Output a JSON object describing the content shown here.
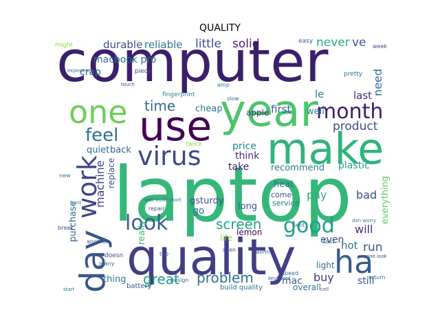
{
  "title": "QUALITY",
  "colors": {
    "background": "#ffffff",
    "title": "#000000"
  },
  "words": [
    {
      "text": "computer",
      "color": "#3b1f6b"
    },
    {
      "text": "laptop",
      "color": "#35b779"
    },
    {
      "text": "year",
      "color": "#4ec36b"
    },
    {
      "text": "quality",
      "color": "#433e85"
    },
    {
      "text": "make",
      "color": "#2fb47c"
    },
    {
      "text": "use",
      "color": "#440154"
    },
    {
      "text": "one",
      "color": "#6ece58"
    },
    {
      "text": "day",
      "color": "#39568c"
    },
    {
      "text": "work",
      "color": "#414487"
    },
    {
      "text": "ha",
      "color": "#365c8d"
    },
    {
      "text": "virus",
      "color": "#3e4a89"
    },
    {
      "text": "month",
      "color": "#3b1f6b"
    },
    {
      "text": "feel",
      "color": "#2d708e"
    },
    {
      "text": "look",
      "color": "#355f8d"
    },
    {
      "text": "good",
      "color": "#1f9e89"
    },
    {
      "text": "screen",
      "color": "#20a486"
    },
    {
      "text": "problem",
      "color": "#2c728e"
    },
    {
      "text": "great",
      "color": "#1e9b8a"
    },
    {
      "text": "time",
      "color": "#31688e"
    },
    {
      "text": "durable",
      "color": "#3e4a89"
    },
    {
      "text": "reliable",
      "color": "#2a788e"
    },
    {
      "text": "little",
      "color": "#3e4c8a"
    },
    {
      "text": "solid",
      "color": "#481a6c"
    },
    {
      "text": "never",
      "color": "#25ab82"
    },
    {
      "text": "ve",
      "color": "#3b528b"
    },
    {
      "text": "macbook pro",
      "color": "#2c718e"
    },
    {
      "text": "crap",
      "color": "#355f8d"
    },
    {
      "text": "product",
      "color": "#3e4a89"
    },
    {
      "text": "first",
      "color": "#365c8d"
    },
    {
      "text": "well",
      "color": "#2a788e"
    },
    {
      "text": "need",
      "color": "#31688e"
    },
    {
      "text": "last",
      "color": "#482677"
    },
    {
      "text": "le",
      "color": "#26818e"
    },
    {
      "text": "machine",
      "color": "#433e85"
    },
    {
      "text": "cheap",
      "color": "#2c728e"
    },
    {
      "text": "apple",
      "color": "#453781"
    },
    {
      "text": "price",
      "color": "#26828e"
    },
    {
      "text": "think",
      "color": "#472d7b"
    },
    {
      "text": "take",
      "color": "#3b1f6b"
    },
    {
      "text": "recommend",
      "color": "#2a788e"
    },
    {
      "text": "plastic",
      "color": "#1fa188"
    },
    {
      "text": "quiet",
      "color": "#2c718e"
    },
    {
      "text": "back",
      "color": "#355f8d"
    },
    {
      "text": "replace",
      "color": "#3e4a89"
    },
    {
      "text": "really",
      "color": "#35b779"
    },
    {
      "text": "heat",
      "color": "#2e6d8e"
    },
    {
      "text": "come",
      "color": "#3b528b"
    },
    {
      "text": "pay",
      "color": "#29af7f"
    },
    {
      "text": "bad",
      "color": "#3e4a89"
    },
    {
      "text": "everything",
      "color": "#5ec962"
    },
    {
      "text": "gsturdy",
      "color": "#404688"
    },
    {
      "text": "go",
      "color": "#2c728e"
    },
    {
      "text": "long",
      "color": "#3b528b"
    },
    {
      "text": "service",
      "color": "#2d708e"
    },
    {
      "text": "will",
      "color": "#472a7a"
    },
    {
      "text": "life",
      "color": "#8fd744"
    },
    {
      "text": "lemon",
      "color": "#440154"
    },
    {
      "text": "hot",
      "color": "#2a788e"
    },
    {
      "text": "run",
      "color": "#3b528b"
    },
    {
      "text": "even",
      "color": "#3e4a89"
    },
    {
      "text": "purchase",
      "color": "#31688e"
    },
    {
      "text": "thing",
      "color": "#2a788e"
    },
    {
      "text": "light",
      "color": "#2c718e"
    },
    {
      "text": "mac",
      "color": "#355f8d"
    },
    {
      "text": "buy",
      "color": "#443983"
    },
    {
      "text": "still",
      "color": "#3b528b"
    },
    {
      "text": "overall",
      "color": "#2c728e"
    },
    {
      "text": "battery",
      "color": "#3b528b"
    },
    {
      "text": "build quality",
      "color": "#2c718e"
    },
    {
      "text": "fingerprint",
      "color": "#26828e"
    },
    {
      "text": "might",
      "color": "#95d840"
    },
    {
      "text": "piece",
      "color": "#3e4a89"
    },
    {
      "text": "easy",
      "color": "#3b528b"
    },
    {
      "text": "pretty",
      "color": "#2c718e"
    },
    {
      "text": "amp",
      "color": "#26828e"
    },
    {
      "text": "fast",
      "color": "#2d708e"
    },
    {
      "text": "doesn",
      "color": "#3e4a89"
    },
    {
      "text": "many",
      "color": "#2c718e"
    },
    {
      "text": "another",
      "color": "#3b528b"
    },
    {
      "text": "design",
      "color": "#2d708e"
    },
    {
      "text": "speed",
      "color": "#2c718e"
    },
    {
      "text": "seen",
      "color": "#3e4a89"
    },
    {
      "text": "sent",
      "color": "#2a788e"
    },
    {
      "text": "top",
      "color": "#3b528b"
    },
    {
      "text": "break",
      "color": "#3e4a89"
    },
    {
      "text": "start",
      "color": "#2a788e"
    },
    {
      "text": "slow",
      "color": "#2c718e"
    },
    {
      "text": "week",
      "color": "#3e4a89"
    },
    {
      "text": "keyboard",
      "color": "#3b528b"
    },
    {
      "text": "new",
      "color": "#2a788e"
    },
    {
      "text": "return",
      "color": "#2c718e"
    },
    {
      "text": "anyone look",
      "color": "#3e4a89"
    },
    {
      "text": "don worry",
      "color": "#2a788e"
    },
    {
      "text": "cell",
      "color": "#3b528b"
    },
    {
      "text": "well build short",
      "color": "#2c718e"
    },
    {
      "text": "repair",
      "color": "#3b528b"
    },
    {
      "text": "hard",
      "color": "#2a788e"
    },
    {
      "text": "experience",
      "color": "#2c718e"
    },
    {
      "text": "touch",
      "color": "#3e4a89"
    },
    {
      "text": "twice",
      "color": "#8fd744"
    },
    {
      "text": "worth",
      "color": "#2a788e"
    }
  ]
}
